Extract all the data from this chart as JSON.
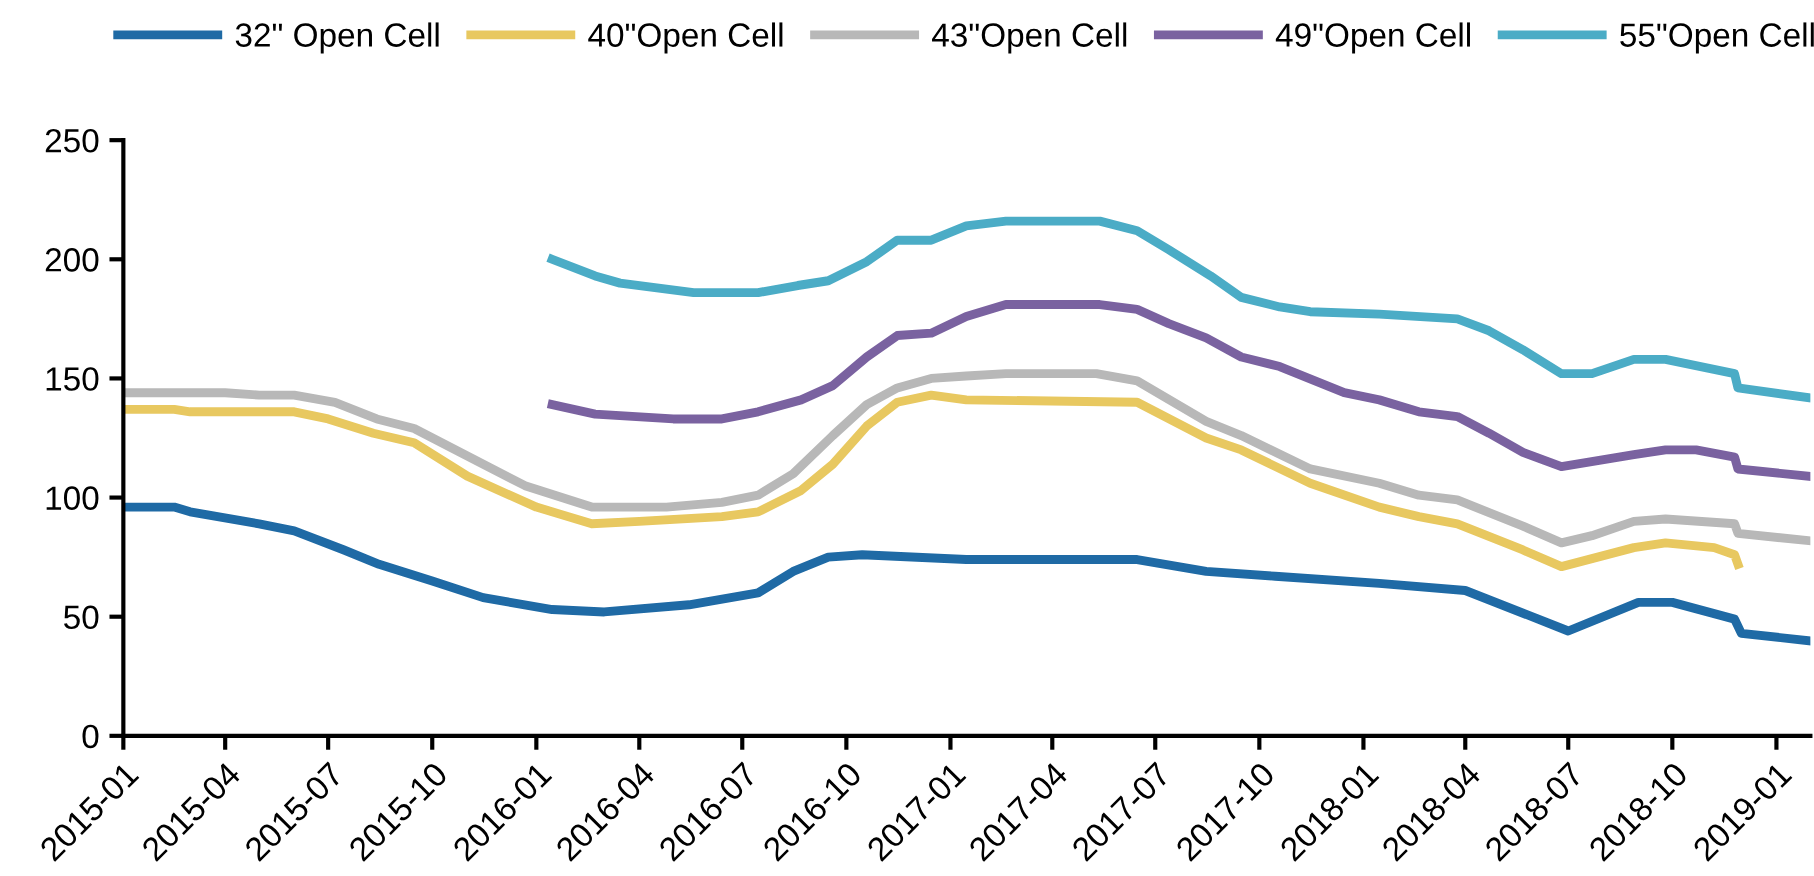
{
  "chart_data": {
    "type": "line",
    "xlim": [
      "2015-01-01",
      "2019-01-31"
    ],
    "xticks": [
      "2015-01",
      "2015-04",
      "2015-07",
      "2015-10",
      "2016-01",
      "2016-04",
      "2016-07",
      "2016-10",
      "2017-01",
      "2017-04",
      "2017-07",
      "2017-10",
      "2018-01",
      "2018-04",
      "2018-07",
      "2018-10",
      "2019-01"
    ],
    "ylim": [
      0,
      250
    ],
    "yticks": [
      0,
      50,
      100,
      150,
      200,
      250
    ],
    "grid": false,
    "legend": "top",
    "marker": "none",
    "line_style": "solid",
    "series": [
      {
        "name": "32\" Open Cell",
        "color": "#1f6aa5",
        "x": [
          "2015-01-01",
          "2015-02-15",
          "2015-03-01",
          "2015-05-01",
          "2015-06-01",
          "2015-07-15",
          "2015-08-15",
          "2015-10-01",
          "2015-11-15",
          "2016-01-15",
          "2016-03-01",
          "2016-05-15",
          "2016-07-15",
          "2016-08-15",
          "2016-09-15",
          "2016-10-15",
          "2017-01-15",
          "2017-06-15",
          "2017-08-15",
          "2017-10-15",
          "2018-01-15",
          "2018-04-01",
          "2018-07-01",
          "2018-09-01",
          "2018-10-01",
          "2018-11-25",
          "2018-12-01",
          "2019-01-28"
        ],
        "values": [
          96,
          96,
          94,
          89,
          86,
          78,
          72,
          65,
          58,
          53,
          52,
          55,
          60,
          69,
          75,
          76,
          74,
          74,
          69,
          67,
          64,
          61,
          44,
          56,
          56,
          49,
          43,
          40
        ]
      },
      {
        "name": "40\"Open Cell",
        "color": "#e8c860",
        "x": [
          "2015-01-01",
          "2015-02-15",
          "2015-03-01",
          "2015-06-01",
          "2015-07-01",
          "2015-08-10",
          "2015-09-15",
          "2015-11-01",
          "2016-01-01",
          "2016-02-19",
          "2016-04-01",
          "2016-06-13",
          "2016-07-15",
          "2016-08-22",
          "2016-09-19",
          "2016-10-19",
          "2016-11-15",
          "2016-12-15",
          "2017-01-15",
          "2017-06-15",
          "2017-08-15",
          "2017-09-15",
          "2017-11-15",
          "2018-01-15",
          "2018-02-19",
          "2018-03-25",
          "2018-05-22",
          "2018-06-25",
          "2018-08-28",
          "2018-09-25",
          "2018-11-07",
          "2018-11-25",
          "2018-11-28"
        ],
        "values": [
          137,
          137,
          136,
          136,
          133,
          127,
          123,
          109,
          96,
          89,
          90,
          92,
          94,
          103,
          114,
          130,
          140,
          143,
          141,
          140,
          125,
          120,
          106,
          96,
          92,
          89,
          78,
          71,
          79,
          81,
          79,
          76,
          72
        ]
      },
      {
        "name": "43\"Open Cell",
        "color": "#b8b8b8",
        "x": [
          "2015-01-01",
          "2015-04-01",
          "2015-05-01",
          "2015-06-01",
          "2015-07-07",
          "2015-08-13",
          "2015-09-15",
          "2015-11-07",
          "2015-12-22",
          "2016-02-19",
          "2016-04-25",
          "2016-06-13",
          "2016-07-15",
          "2016-08-15",
          "2016-09-19",
          "2016-10-19",
          "2016-11-15",
          "2016-12-15",
          "2017-01-15",
          "2017-02-19",
          "2017-05-10",
          "2017-06-15",
          "2017-08-15",
          "2017-09-15",
          "2017-11-15",
          "2018-01-15",
          "2018-02-19",
          "2018-03-25",
          "2018-05-22",
          "2018-06-25",
          "2018-07-22",
          "2018-08-28",
          "2018-09-25",
          "2018-11-25",
          "2018-11-28",
          "2019-01-28"
        ],
        "values": [
          144,
          144,
          143,
          143,
          140,
          133,
          129,
          116,
          105,
          96,
          96,
          98,
          101,
          110,
          126,
          139,
          146,
          150,
          151,
          152,
          152,
          149,
          132,
          126,
          112,
          106,
          101,
          99,
          88,
          81,
          84,
          90,
          91,
          89,
          85,
          82
        ]
      },
      {
        "name": "49\"Open Cell",
        "color": "#7a62a0",
        "x": [
          "2016-01-15",
          "2016-02-22",
          "2016-05-01",
          "2016-06-13",
          "2016-07-15",
          "2016-08-22",
          "2016-09-19",
          "2016-10-19",
          "2016-11-15",
          "2016-12-15",
          "2017-01-15",
          "2017-02-19",
          "2017-05-13",
          "2017-06-15",
          "2017-07-13",
          "2017-08-15",
          "2017-09-15",
          "2017-10-19",
          "2017-12-15",
          "2018-01-15",
          "2018-02-19",
          "2018-03-25",
          "2018-04-22",
          "2018-05-22",
          "2018-06-25",
          "2018-08-28",
          "2018-09-25",
          "2018-10-22",
          "2018-11-25",
          "2018-11-28",
          "2019-01-28"
        ],
        "values": [
          139,
          135,
          133,
          133,
          136,
          141,
          147,
          159,
          168,
          169,
          176,
          181,
          181,
          179,
          173,
          167,
          159,
          155,
          144,
          141,
          136,
          134,
          127,
          119,
          113,
          118,
          120,
          120,
          117,
          112,
          109
        ]
      },
      {
        "name": "55\"Open Cell",
        "color": "#4bacc6",
        "x": [
          "2016-01-15",
          "2016-02-22",
          "2016-03-15",
          "2016-05-19",
          "2016-07-15",
          "2016-08-19",
          "2016-09-15",
          "2016-10-19",
          "2016-11-15",
          "2016-12-15",
          "2017-01-15",
          "2017-02-19",
          "2017-05-13",
          "2017-06-15",
          "2017-07-13",
          "2017-08-19",
          "2017-09-15",
          "2017-10-19",
          "2017-11-15",
          "2018-01-15",
          "2018-03-25",
          "2018-04-22",
          "2018-05-22",
          "2018-06-25",
          "2018-07-22",
          "2018-08-28",
          "2018-09-25",
          "2018-11-25",
          "2018-11-28",
          "2019-01-28"
        ],
        "values": [
          200,
          193,
          190,
          186,
          186,
          189,
          191,
          199,
          208,
          208,
          214,
          216,
          216,
          212,
          204,
          193,
          184,
          180,
          178,
          177,
          175,
          170,
          162,
          152,
          152,
          158,
          158,
          152,
          146,
          142
        ]
      }
    ]
  }
}
